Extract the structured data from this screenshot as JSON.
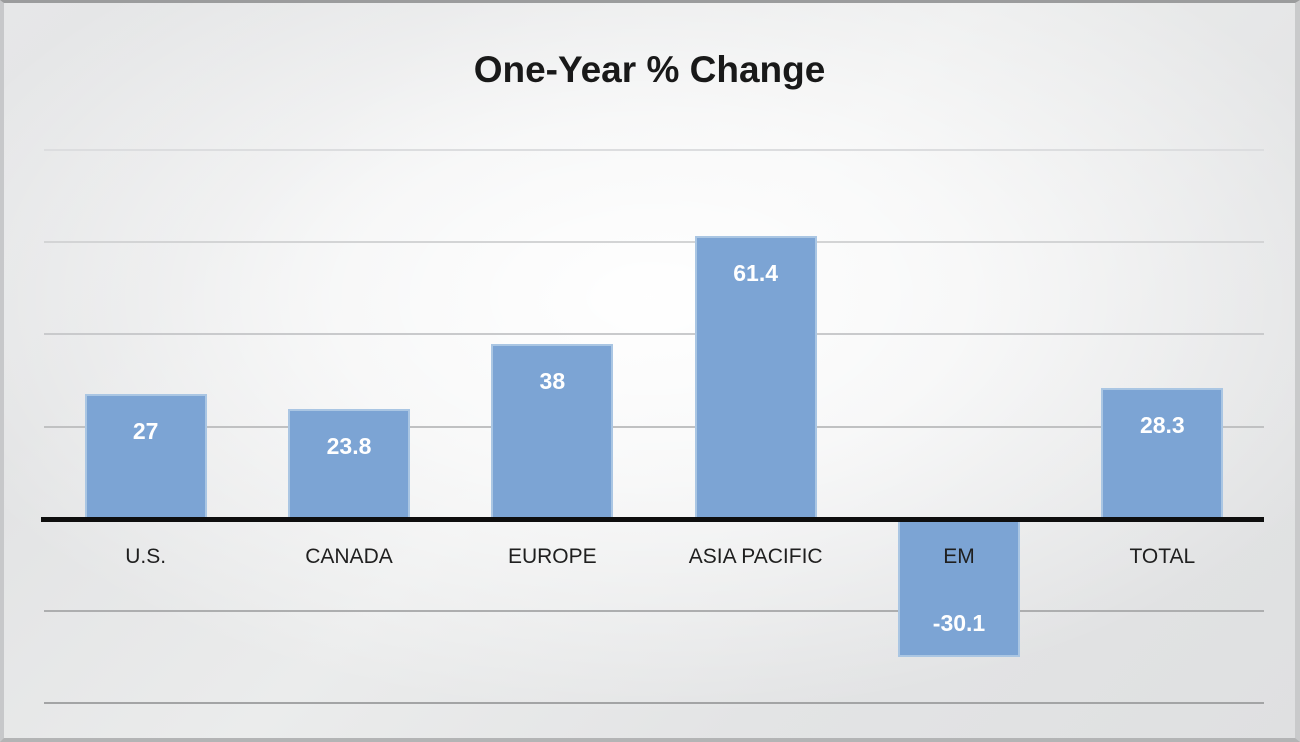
{
  "chart_data": {
    "type": "bar",
    "title": "One-Year % Change",
    "categories": [
      "U.S.",
      "CANADA",
      "EUROPE",
      "ASIA PACIFIC",
      "EM",
      "TOTAL"
    ],
    "values": [
      27,
      23.8,
      38,
      61.4,
      -30.1,
      28.3
    ],
    "data_labels": [
      "27",
      "23.8",
      "38",
      "61.4",
      "-30.1",
      "28.3"
    ],
    "xlabel": "",
    "ylabel": "",
    "ylim": [
      -40,
      80
    ],
    "gridline_interval": 20,
    "grid": true,
    "legend": "none",
    "axis_tick_labels_visible": false,
    "colors": {
      "bar_fill": "#7ca4d4",
      "bar_border": "#aac6e3",
      "axis_line": "#0e0e0e",
      "gridline_top": "#dcdddf",
      "gridline_bottom": "#a3a4a5",
      "category_text": "#1f1f1f",
      "title_text": "#191919",
      "data_label_text": "#ffffff"
    }
  }
}
